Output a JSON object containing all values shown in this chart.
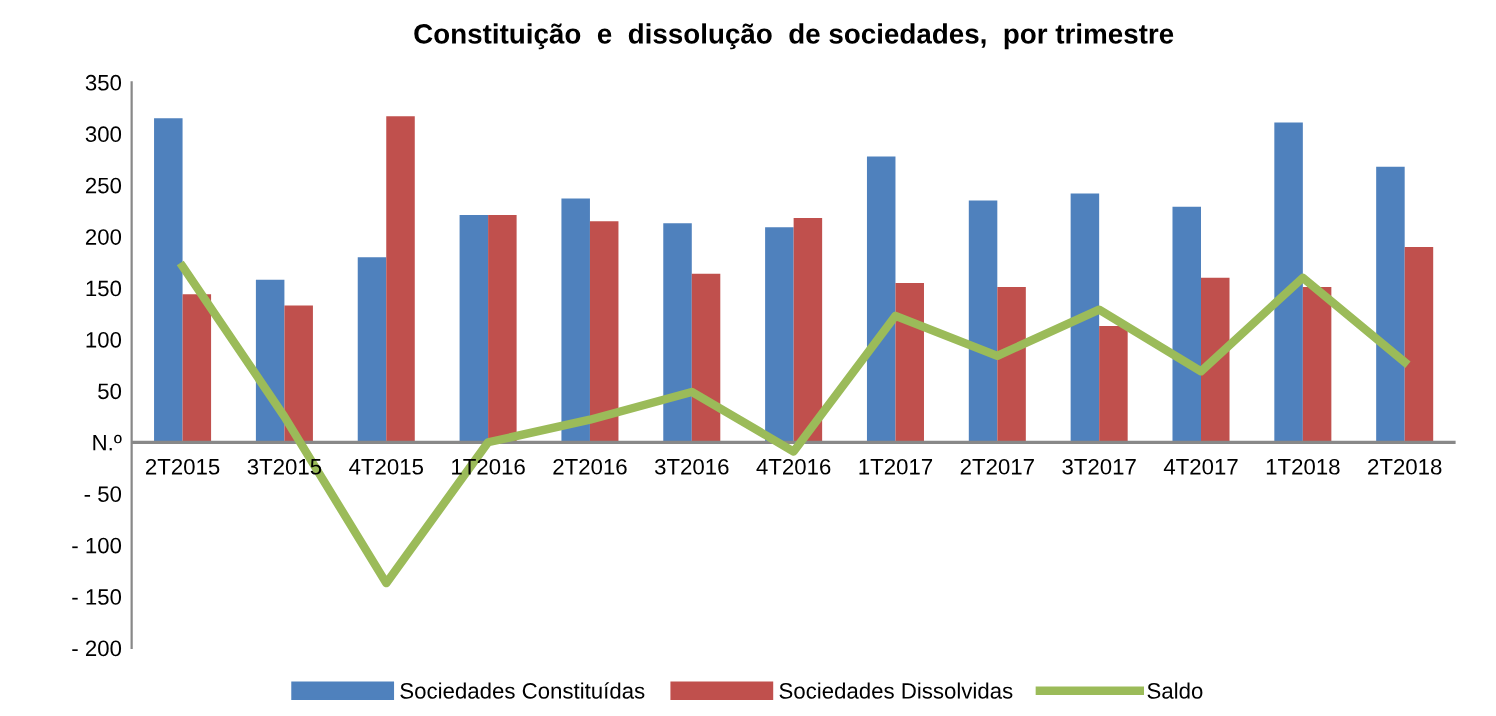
{
  "chart_data": {
    "type": "bar",
    "title": "Constituição  e  dissolução  de sociedades,  por trimestre",
    "categories": [
      "2T2015",
      "3T2015",
      "4T2015",
      "1T2016",
      "2T2016",
      "3T2016",
      "4T2016",
      "1T2017",
      "2T2017",
      "3T2017",
      "4T2017",
      "1T2018",
      "2T2018"
    ],
    "series": [
      {
        "name": "Sociedades Constituídas",
        "color": "#4f81bd",
        "values": [
          315,
          158,
          180,
          221,
          237,
          213,
          209,
          278,
          235,
          242,
          229,
          311,
          268
        ]
      },
      {
        "name": "Sociedades Dissolvidas",
        "color": "#c0504d",
        "values": [
          144,
          133,
          317,
          221,
          215,
          164,
          218,
          155,
          151,
          113,
          160,
          151,
          190
        ]
      },
      {
        "name": "Saldo",
        "type": "line",
        "color": "#9bbb59",
        "values": [
          171,
          25,
          -137,
          0,
          22,
          49,
          -9,
          123,
          84,
          129,
          69,
          160,
          78
        ]
      }
    ],
    "ylim": [
      -200,
      350
    ],
    "yticks": [
      {
        "value": -200,
        "label": "- 200"
      },
      {
        "value": -150,
        "label": "- 150"
      },
      {
        "value": -100,
        "label": "- 100"
      },
      {
        "value": -50,
        "label": "- 50"
      },
      {
        "value": 0,
        "label": "N.º"
      },
      50,
      100,
      150,
      200,
      250,
      300,
      350
    ],
    "grid": false,
    "legend": "bottom"
  }
}
